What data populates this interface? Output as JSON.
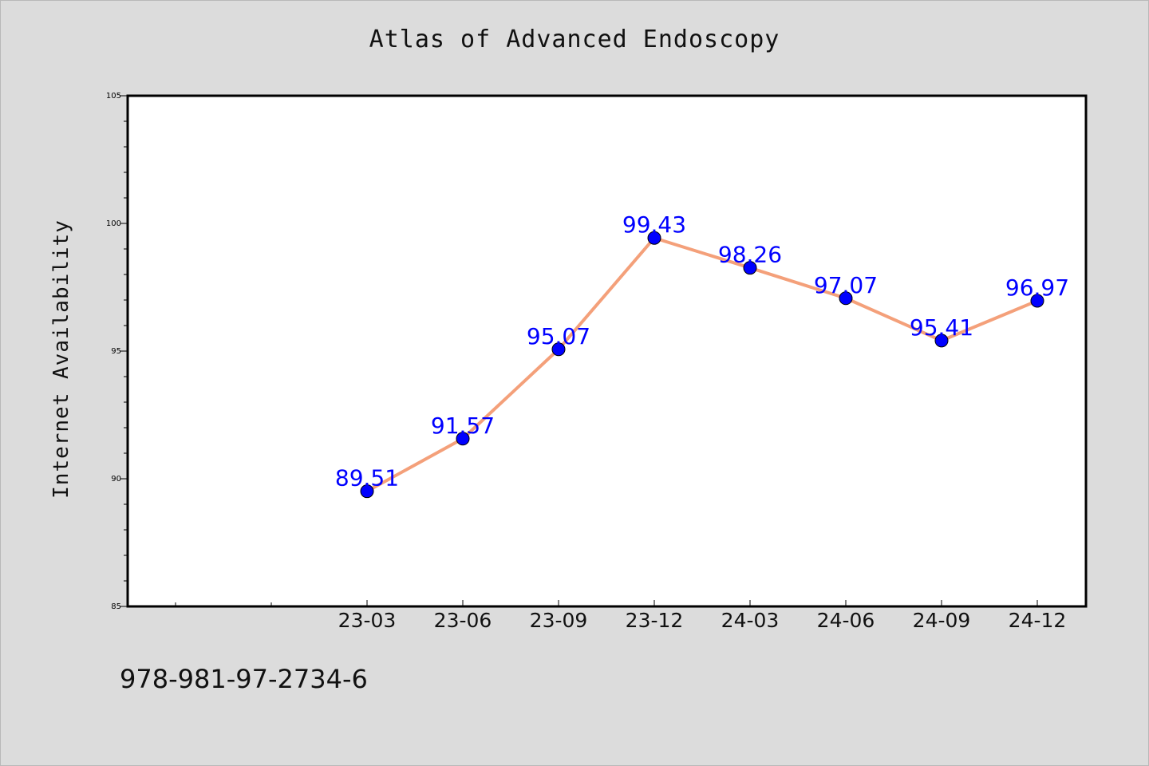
{
  "chart_data": {
    "type": "line",
    "title": "Atlas of Advanced Endoscopy",
    "xlabel": "",
    "ylabel": "Internet Availability",
    "categories": [
      "23-03",
      "23-06",
      "23-09",
      "23-12",
      "24-03",
      "24-06",
      "24-09",
      "24-12"
    ],
    "series": [
      {
        "values": [
          89.51,
          91.57,
          95.07,
          99.43,
          98.26,
          97.07,
          95.41,
          96.97
        ]
      }
    ],
    "data_labels": [
      "89.51",
      "91.57",
      "95.07",
      "99.43",
      "98.26",
      "97.07",
      "95.41",
      "96.97"
    ],
    "ylim": [
      85,
      105
    ],
    "yticks": [
      "85",
      "90",
      "95",
      "100",
      "105"
    ],
    "grid": false,
    "legend": "none",
    "colors": {
      "line": "#f4a07a",
      "marker": "#0000ff",
      "label": "#0000ff",
      "plot_bg": "#ffffff",
      "figure_bg": "#dcdcdc"
    }
  },
  "footer_text": "978-981-97-2734-6"
}
